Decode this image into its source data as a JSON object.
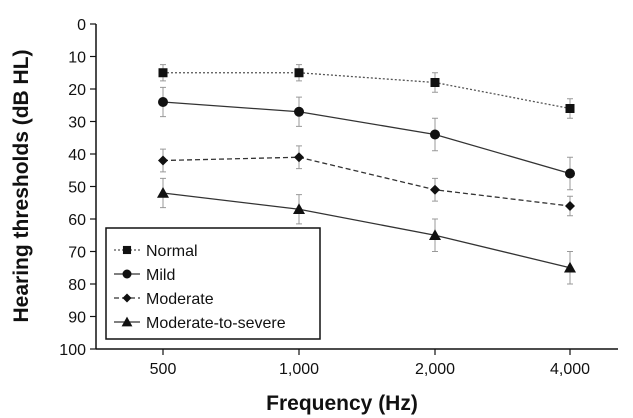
{
  "chart_data": {
    "type": "line",
    "xlabel": "Frequency (Hz)",
    "ylabel": "Hearing thresholds (dB HL)",
    "categories": [
      "500",
      "1,000",
      "2,000",
      "4,000"
    ],
    "ylim": [
      0,
      100
    ],
    "y_inverted": true,
    "y_ticks": [
      0,
      10,
      20,
      30,
      40,
      50,
      60,
      70,
      80,
      90,
      100
    ],
    "legend_position": "bottom-left",
    "grid": false,
    "series": [
      {
        "name": "Normal",
        "values": [
          15,
          15,
          18,
          26
        ],
        "errors": [
          2.5,
          2.5,
          3,
          3
        ],
        "marker": "square",
        "line": "dotted"
      },
      {
        "name": "Mild",
        "values": [
          24,
          27,
          34,
          46
        ],
        "errors": [
          4.5,
          4.5,
          5,
          5
        ],
        "marker": "circle",
        "line": "solid"
      },
      {
        "name": "Moderate",
        "values": [
          42,
          41,
          51,
          56
        ],
        "errors": [
          3.5,
          3.5,
          3.5,
          3
        ],
        "marker": "diamond",
        "line": "dashed"
      },
      {
        "name": "Moderate-to-severe",
        "values": [
          52,
          57,
          65,
          75
        ],
        "errors": [
          4.5,
          4.5,
          5,
          5
        ],
        "marker": "triangle",
        "line": "solid"
      }
    ]
  }
}
